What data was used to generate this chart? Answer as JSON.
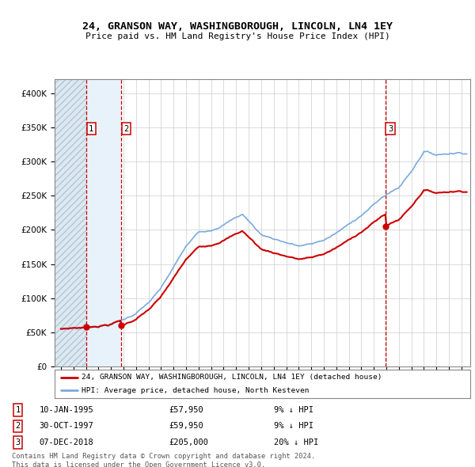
{
  "title": "24, GRANSON WAY, WASHINGBOROUGH, LINCOLN, LN4 1EY",
  "subtitle": "Price paid vs. HM Land Registry's House Price Index (HPI)",
  "legend_line1": "24, GRANSON WAY, WASHINGBOROUGH, LINCOLN, LN4 1EY (detached house)",
  "legend_line2": "HPI: Average price, detached house, North Kesteven",
  "footer": "Contains HM Land Registry data © Crown copyright and database right 2024.\nThis data is licensed under the Open Government Licence v3.0.",
  "transactions": [
    {
      "num": 1,
      "date": "10-JAN-1995",
      "price": 57950,
      "year": 1995.03,
      "pct": "9%",
      "dir": "↓"
    },
    {
      "num": 2,
      "date": "30-OCT-1997",
      "price": 59950,
      "year": 1997.83,
      "pct": "9%",
      "dir": "↓"
    },
    {
      "num": 3,
      "date": "07-DEC-2018",
      "price": 205000,
      "year": 2018.92,
      "pct": "20%",
      "dir": "↓"
    }
  ],
  "ylim": [
    0,
    420000
  ],
  "xlim_start": 1992.5,
  "xlim_end": 2025.7,
  "price_color": "#cc0000",
  "hpi_color": "#7aaadd",
  "grid_color": "#cccccc",
  "bg_color": "#ffffff",
  "hatch_fill_color": "#dde8f0",
  "light_fill_color": "#e8f2fa"
}
